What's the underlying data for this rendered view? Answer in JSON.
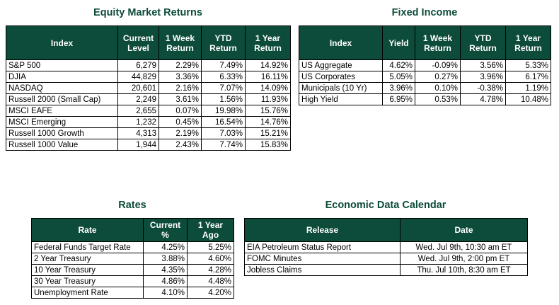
{
  "equity": {
    "title": "Equity Market Returns",
    "headers": [
      "Index",
      "Current Level",
      "1 Week Return",
      "YTD Return",
      "1 Year Return"
    ],
    "rows": [
      [
        "S&P 500",
        "6,279",
        "2.29%",
        "7.49%",
        "14.92%"
      ],
      [
        "DJIA",
        "44,829",
        "3.36%",
        "6.33%",
        "16.11%"
      ],
      [
        "NASDAQ",
        "20,601",
        "2.16%",
        "7.07%",
        "14.09%"
      ],
      [
        "Russell 2000 (Small Cap)",
        "2,249",
        "3.61%",
        "1.56%",
        "11.93%"
      ],
      [
        "MSCI EAFE",
        "2,655",
        "0.07%",
        "19.98%",
        "15.76%"
      ],
      [
        "MSCI Emerging",
        "1,232",
        "0.45%",
        "16.54%",
        "14.76%"
      ],
      [
        "Russell 1000 Growth",
        "4,313",
        "2.19%",
        "7.03%",
        "15.21%"
      ],
      [
        "Russell 1000 Value",
        "1,944",
        "2.43%",
        "7.74%",
        "15.83%"
      ]
    ]
  },
  "fixed_income": {
    "title": "Fixed Income",
    "headers": [
      "Index",
      "Yield",
      "1 Week Return",
      "YTD Return",
      "1 Year Return"
    ],
    "rows": [
      [
        "US Aggregate",
        "4.62%",
        "-0.09%",
        "3.56%",
        "5.33%"
      ],
      [
        "US Corporates",
        "5.05%",
        "0.27%",
        "3.96%",
        "6.17%"
      ],
      [
        "Municipals (10 Yr)",
        "3.96%",
        "0.10%",
        "-0.38%",
        "1.19%"
      ],
      [
        "High Yield",
        "6.95%",
        "0.53%",
        "4.78%",
        "10.48%"
      ]
    ]
  },
  "rates": {
    "title": "Rates",
    "headers": [
      "Rate",
      "Current %",
      "1 Year Ago"
    ],
    "rows": [
      [
        "Federal Funds Target Rate",
        "4.25%",
        "5.25%"
      ],
      [
        "2 Year Treasury",
        "3.88%",
        "4.60%"
      ],
      [
        "10 Year Treasury",
        "4.35%",
        "4.28%"
      ],
      [
        "30 Year Treasury",
        "4.86%",
        "4.48%"
      ],
      [
        "Unemployment Rate",
        "4.10%",
        "4.20%"
      ]
    ]
  },
  "calendar": {
    "title": "Economic Data Calendar",
    "headers": [
      "Release",
      "Date"
    ],
    "rows": [
      [
        "EIA Petroleum Status Report",
        "Wed. Jul 9th, 10:30 am ET"
      ],
      [
        "FOMC Minutes",
        "Wed. Jul 9th, 2:00 pm ET"
      ],
      [
        "Jobless Claims",
        "Thu. Jul 10th, 8:30 am ET"
      ]
    ]
  },
  "colors": {
    "header_bg": "#0d4b3a",
    "title_text": "#0d4b3a",
    "header_text": "#ffffff"
  }
}
